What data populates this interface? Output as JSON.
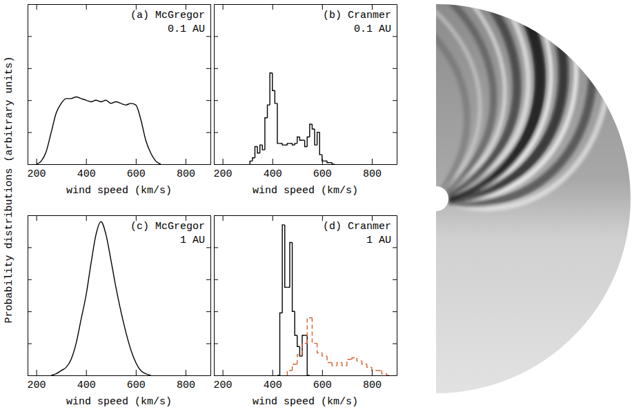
{
  "ylabel": "Probability distributions (arbitrary units)",
  "chart_data": [
    {
      "type": "line",
      "title": "(a) McGregor",
      "subtitle": "0.1 AU",
      "x_label": "wind speed (km/s)",
      "xlim": [
        165,
        900
      ],
      "xticks": [
        200,
        400,
        600,
        800
      ],
      "ylim": [
        0,
        1
      ],
      "yticks": [
        0,
        0.2,
        0.4,
        0.6,
        0.8,
        1
      ],
      "tick_labels": "x",
      "series": [
        {
          "color": "#000000",
          "line_style": "solid",
          "x": [
            200,
            220,
            240,
            260,
            280,
            300,
            320,
            340,
            360,
            380,
            400,
            420,
            440,
            460,
            480,
            500,
            520,
            540,
            560,
            580,
            600,
            620,
            640,
            660,
            680,
            700
          ],
          "values": [
            0,
            0.02,
            0.08,
            0.2,
            0.32,
            0.38,
            0.41,
            0.41,
            0.42,
            0.41,
            0.4,
            0.39,
            0.4,
            0.39,
            0.4,
            0.38,
            0.39,
            0.38,
            0.37,
            0.38,
            0.37,
            0.28,
            0.15,
            0.07,
            0.02,
            0
          ]
        }
      ]
    },
    {
      "type": "histogram",
      "title": "(b) Cranmer",
      "subtitle": "0.1 AU",
      "x_label": "wind speed (km/s)",
      "xlim": [
        165,
        900
      ],
      "xticks": [
        200,
        400,
        600,
        800
      ],
      "ylim": [
        0,
        1
      ],
      "yticks": [
        0,
        0.2,
        0.4,
        0.6,
        0.8,
        1
      ],
      "tick_labels": "x",
      "series": [
        {
          "color": "#000000",
          "line_style": "solid",
          "bins": [
            310,
            320,
            330,
            340,
            350,
            360,
            370,
            380,
            390,
            400,
            410,
            420,
            430,
            440,
            450,
            460,
            470,
            480,
            490,
            500,
            510,
            520,
            530,
            540,
            550,
            560,
            570,
            580,
            590,
            600,
            610,
            620,
            630,
            640,
            650
          ],
          "values": [
            0.02,
            0.04,
            0.11,
            0.07,
            0.12,
            0.09,
            0.29,
            0.37,
            0.57,
            0.46,
            0.38,
            0.13,
            0.13,
            0.12,
            0.12,
            0.13,
            0.13,
            0.12,
            0.13,
            0.17,
            0.15,
            0.15,
            0.11,
            0.17,
            0.25,
            0.22,
            0.12,
            0.2,
            0.06,
            0.02,
            0.02,
            0.01,
            0.01,
            0
          ]
        }
      ]
    },
    {
      "type": "line",
      "title": "(c) McGregor",
      "subtitle": "1 AU",
      "x_label": "wind speed (km/s)",
      "xlim": [
        165,
        900
      ],
      "xticks": [
        200,
        400,
        600,
        800
      ],
      "ylim": [
        0,
        1
      ],
      "yticks": [
        0,
        0.2,
        0.4,
        0.6,
        0.8,
        1
      ],
      "tick_labels": "x",
      "series": [
        {
          "color": "#000000",
          "line_style": "solid",
          "x": [
            260,
            280,
            300,
            320,
            340,
            360,
            380,
            400,
            420,
            440,
            460,
            480,
            500,
            520,
            540,
            560,
            580,
            600,
            620,
            640,
            660
          ],
          "values": [
            0,
            0.01,
            0.03,
            0.05,
            0.1,
            0.2,
            0.35,
            0.5,
            0.7,
            0.88,
            0.96,
            0.88,
            0.72,
            0.55,
            0.4,
            0.27,
            0.16,
            0.08,
            0.03,
            0.01,
            0
          ]
        }
      ]
    },
    {
      "type": "histogram",
      "title": "(d) Cranmer",
      "subtitle": "1 AU",
      "x_label": "wind speed (km/s)",
      "xlim": [
        165,
        900
      ],
      "xticks": [
        200,
        400,
        600,
        800
      ],
      "ylim": [
        0,
        1
      ],
      "yticks": [
        0,
        0.2,
        0.4,
        0.6,
        0.8,
        1
      ],
      "tick_labels": "x",
      "series": [
        {
          "color": "#000000",
          "line_style": "solid",
          "bins": [
            420,
            430,
            440,
            450,
            460,
            470,
            480,
            490,
            500,
            510,
            520,
            530,
            540,
            550
          ],
          "values": [
            0,
            0.39,
            0.94,
            0.55,
            0.55,
            0.83,
            0.4,
            0.25,
            0.18,
            0.12,
            0.25,
            0.25,
            0
          ]
        },
        {
          "color": "#d4602c",
          "line_style": "dashed",
          "bins": [
            460,
            480,
            500,
            520,
            540,
            560,
            580,
            600,
            620,
            640,
            660,
            680,
            700,
            720,
            740,
            760,
            780,
            800,
            820,
            840,
            860,
            880
          ],
          "values": [
            0.03,
            0.07,
            0.13,
            0.2,
            0.36,
            0.2,
            0.14,
            0.12,
            0.08,
            0.06,
            0.08,
            0.06,
            0.1,
            0.11,
            0.09,
            0.07,
            0.05,
            0.03,
            0.03,
            0.01,
            0
          ]
        }
      ]
    }
  ]
}
